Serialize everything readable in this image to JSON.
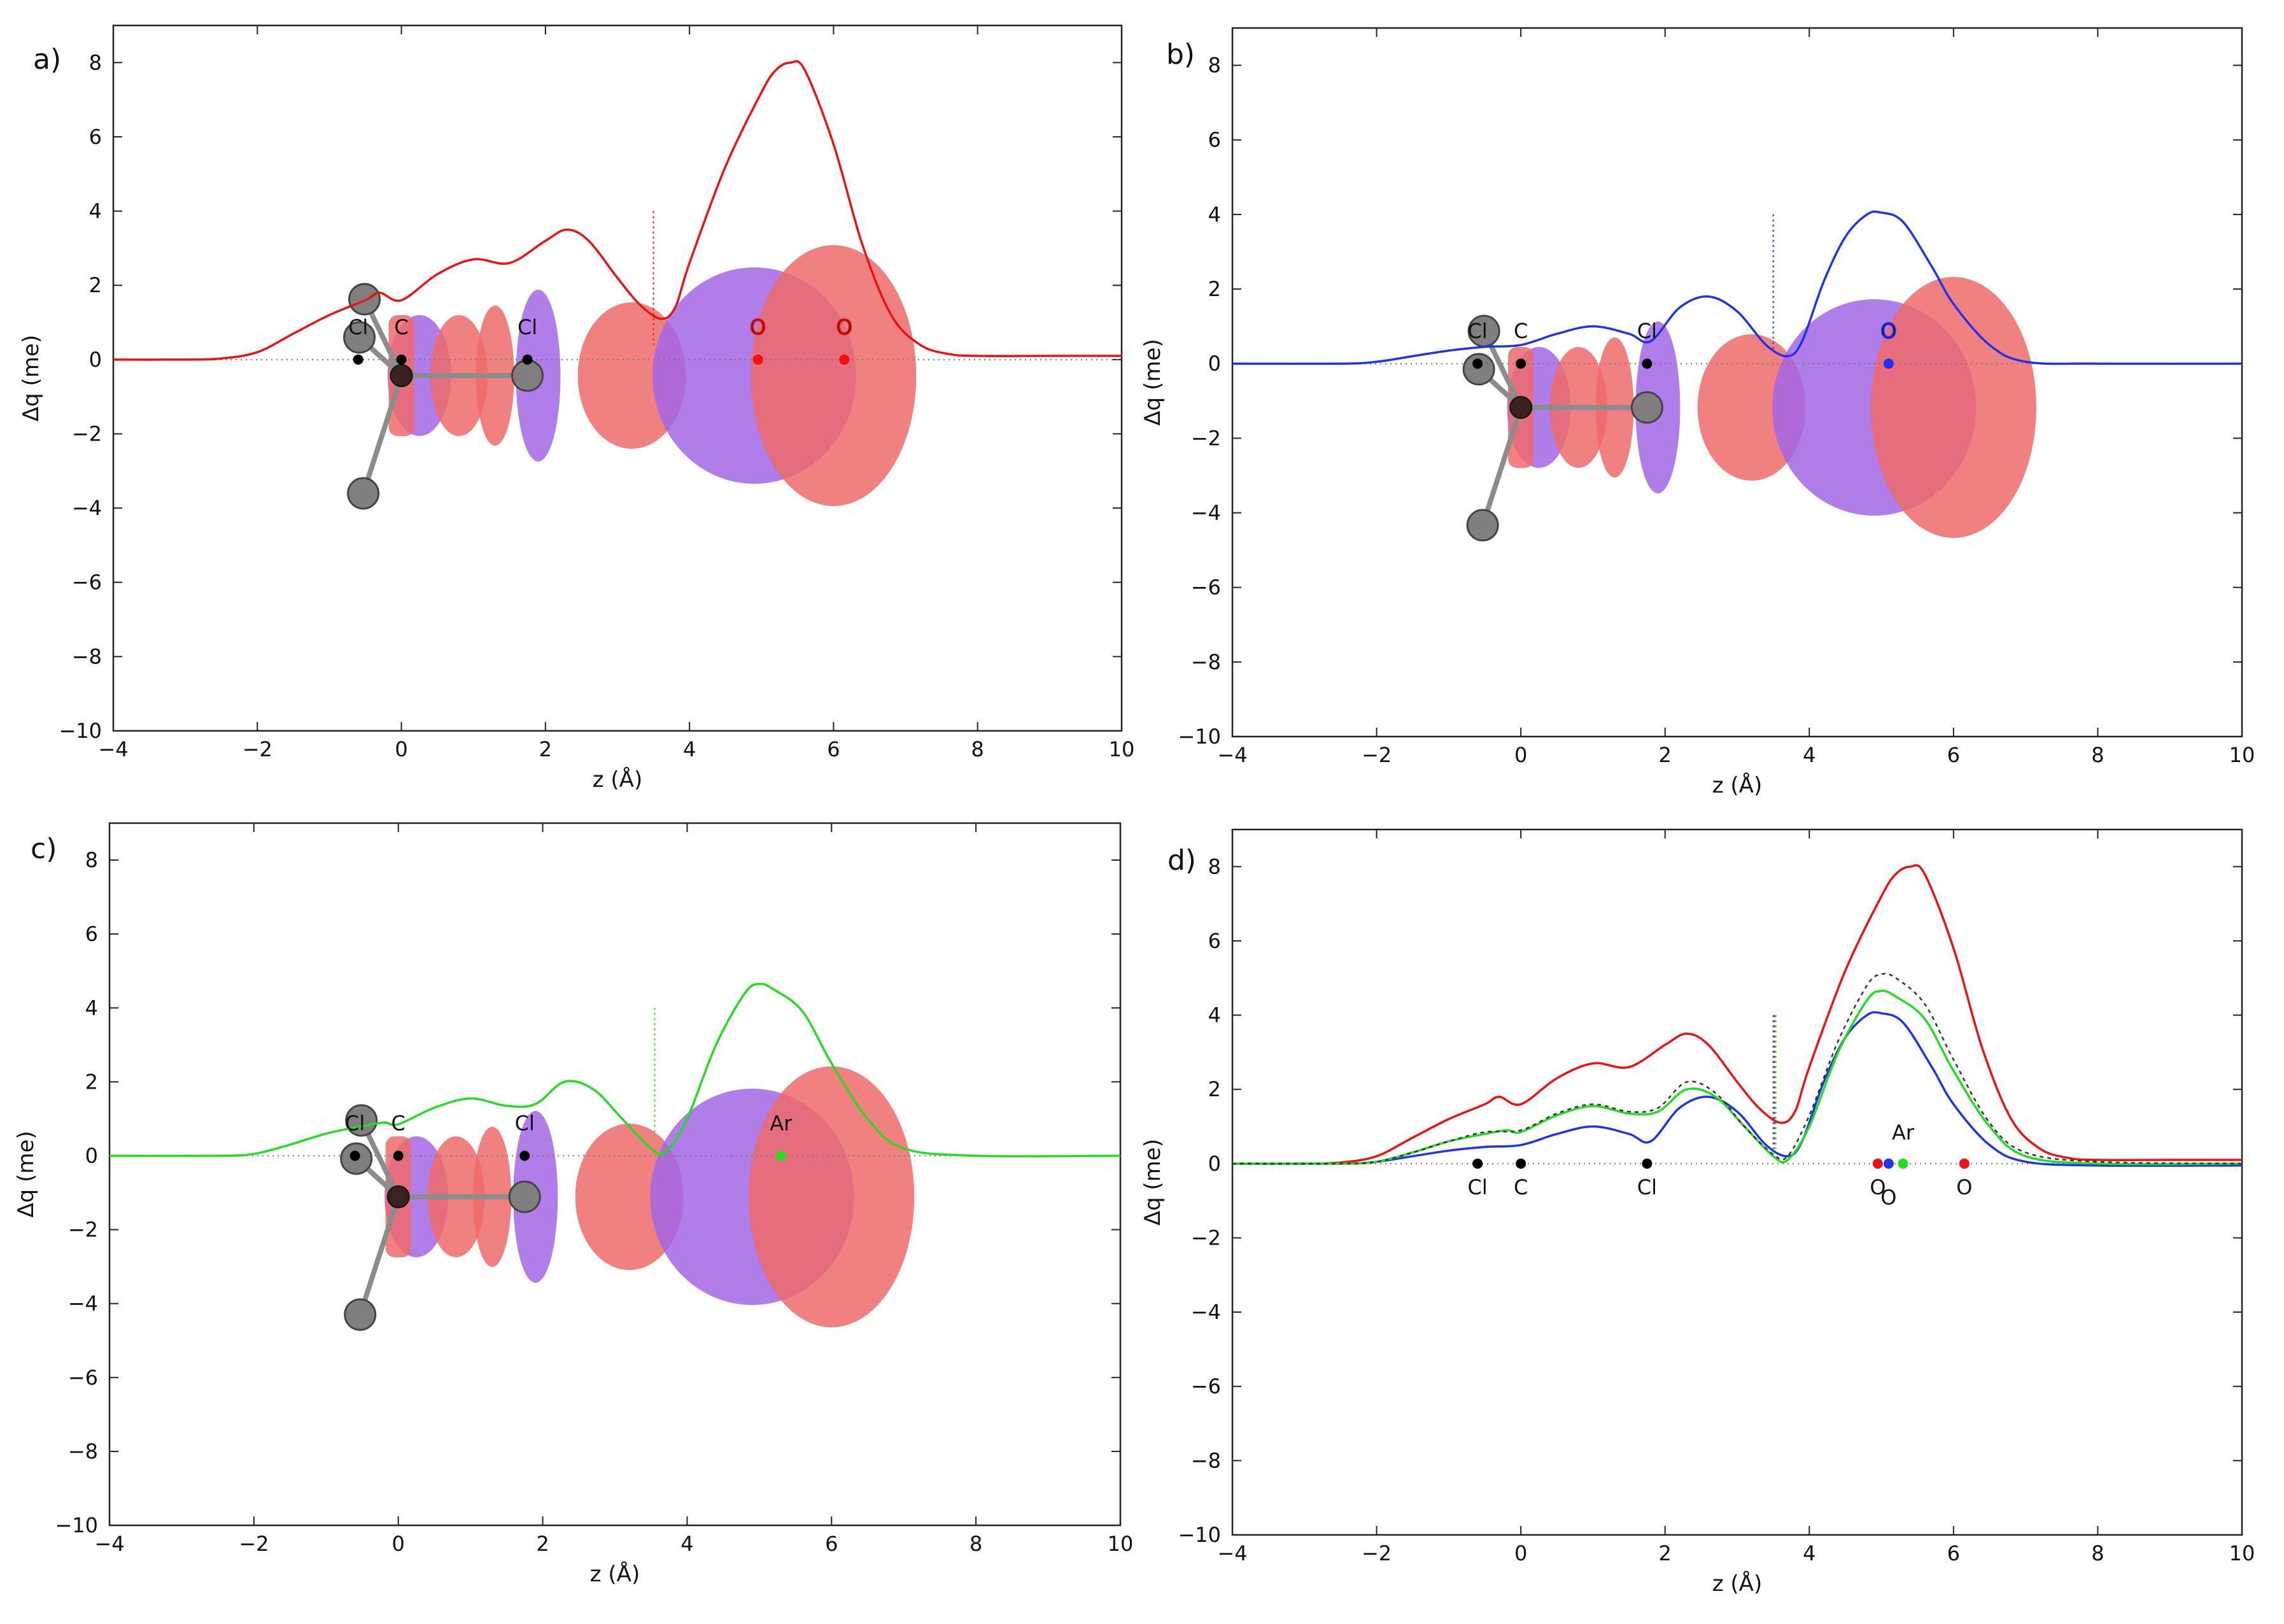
{
  "chart_data": [
    {
      "type": "line",
      "panel_label": "a)",
      "xlabel": "z (Å)",
      "ylabel": "Δq (me)",
      "xlim": [
        -4,
        10
      ],
      "ylim": [
        -10,
        9
      ],
      "xticks": [
        -4,
        -2,
        0,
        2,
        4,
        6,
        8,
        10
      ],
      "xtick_labels": [
        "−4",
        "−2",
        "0",
        "2",
        "4",
        "6",
        "8",
        "10"
      ],
      "yticks": [
        -10,
        -8,
        -6,
        -4,
        -2,
        0,
        2,
        4,
        6,
        8
      ],
      "ytick_labels": [
        "−10",
        "−8",
        "−6",
        "−4",
        "−2",
        "0",
        "2",
        "4",
        "6",
        "8"
      ],
      "grid": false,
      "zero_line": true,
      "vline_x": 3.5,
      "series": [
        {
          "color": "#ee1111",
          "dashed": false,
          "x": [
            -4,
            -3,
            -2.5,
            -2,
            -1.5,
            -1,
            -0.5,
            -0.3,
            0,
            0.5,
            1,
            1.5,
            2,
            2.3,
            2.6,
            3,
            3.3,
            3.6,
            3.8,
            4,
            4.5,
            5,
            5.2,
            5.4,
            5.6,
            6,
            6.4,
            6.8,
            7.2,
            7.6,
            8,
            9,
            10
          ],
          "y": [
            0,
            0,
            0.03,
            0.2,
            0.7,
            1.2,
            1.6,
            1.8,
            1.6,
            2.3,
            2.7,
            2.6,
            3.2,
            3.5,
            3.2,
            2.2,
            1.5,
            1.1,
            1.4,
            2.6,
            5.2,
            7.2,
            7.8,
            8.0,
            7.8,
            5.8,
            3.1,
            1.2,
            0.4,
            0.15,
            0.1,
            0.1,
            0.1
          ]
        }
      ],
      "atoms": [
        {
          "label": "Cl",
          "x": -0.6,
          "color": "#000000"
        },
        {
          "label": "C",
          "x": 0.0,
          "color": "#000000"
        },
        {
          "label": "Cl",
          "x": 1.75,
          "color": "#000000"
        },
        {
          "label": "O",
          "x": 4.95,
          "color": "#ee1111"
        },
        {
          "label": "O",
          "x": 6.15,
          "color": "#ee1111"
        }
      ],
      "atom_label_position": "above",
      "density_isosurface": {
        "positive_color": "#ef6a6a",
        "negative_color": "#a366e6"
      }
    },
    {
      "type": "line",
      "panel_label": "b)",
      "xlabel": "z (Å)",
      "ylabel": "Δq (me)",
      "xlim": [
        -4,
        10
      ],
      "ylim": [
        -10,
        9
      ],
      "xticks": [
        -4,
        -2,
        0,
        2,
        4,
        6,
        8,
        10
      ],
      "xtick_labels": [
        "−4",
        "−2",
        "0",
        "2",
        "4",
        "6",
        "8",
        "10"
      ],
      "yticks": [
        -10,
        -8,
        -6,
        -4,
        -2,
        0,
        2,
        4,
        6,
        8
      ],
      "ytick_labels": [
        "−10",
        "−8",
        "−6",
        "−4",
        "−2",
        "0",
        "2",
        "4",
        "6",
        "8"
      ],
      "grid": false,
      "zero_line": true,
      "vline_x": 3.5,
      "series": [
        {
          "color": "#1f33ee",
          "dashed": false,
          "x": [
            -4,
            -2.5,
            -2,
            -1.5,
            -1,
            -0.5,
            0,
            0.5,
            1,
            1.5,
            1.8,
            2.2,
            2.6,
            3,
            3.4,
            3.7,
            3.9,
            4.2,
            4.5,
            4.8,
            5,
            5.3,
            5.7,
            6,
            6.5,
            7,
            8,
            10
          ],
          "y": [
            0,
            0,
            0.05,
            0.2,
            0.35,
            0.45,
            0.5,
            0.8,
            1.0,
            0.8,
            0.6,
            1.5,
            1.8,
            1.4,
            0.5,
            0.2,
            0.6,
            2.2,
            3.4,
            4.0,
            4.05,
            3.8,
            2.6,
            1.6,
            0.5,
            0.05,
            0,
            0
          ]
        }
      ],
      "atoms": [
        {
          "label": "Cl",
          "x": -0.6,
          "color": "#000000"
        },
        {
          "label": "C",
          "x": 0.0,
          "color": "#000000"
        },
        {
          "label": "Cl",
          "x": 1.75,
          "color": "#000000"
        },
        {
          "label": "O",
          "x": 5.1,
          "color": "#1f33ee"
        }
      ],
      "atom_label_position": "above",
      "density_isosurface": {
        "positive_color": "#ef6a6a",
        "negative_color": "#a366e6"
      }
    },
    {
      "type": "line",
      "panel_label": "c)",
      "xlabel": "z (Å)",
      "ylabel": "Δq (me)",
      "xlim": [
        -4,
        10
      ],
      "ylim": [
        -10,
        9
      ],
      "xticks": [
        -4,
        -2,
        0,
        2,
        4,
        6,
        8,
        10
      ],
      "xtick_labels": [
        "−4",
        "−2",
        "0",
        "2",
        "4",
        "6",
        "8",
        "10"
      ],
      "yticks": [
        -10,
        -8,
        -6,
        -4,
        -2,
        0,
        2,
        4,
        6,
        8
      ],
      "ytick_labels": [
        "−10",
        "−8",
        "−6",
        "−4",
        "−2",
        "0",
        "2",
        "4",
        "6",
        "8"
      ],
      "grid": false,
      "zero_line": true,
      "vline_x": 3.55,
      "series": [
        {
          "color": "#22dd22",
          "dashed": false,
          "x": [
            -4,
            -2.5,
            -2,
            -1.5,
            -1,
            -0.5,
            -0.2,
            0,
            0.5,
            1,
            1.5,
            1.9,
            2.3,
            2.7,
            3.1,
            3.5,
            3.7,
            4,
            4.4,
            4.8,
            5.0,
            5.2,
            5.6,
            6,
            6.5,
            7,
            8,
            10
          ],
          "y": [
            0,
            0,
            0.05,
            0.3,
            0.6,
            0.8,
            0.9,
            0.85,
            1.3,
            1.55,
            1.35,
            1.4,
            2.0,
            1.8,
            1.0,
            0.2,
            0.1,
            1.0,
            3.0,
            4.4,
            4.65,
            4.5,
            3.9,
            2.5,
            1.0,
            0.2,
            0,
            0
          ]
        }
      ],
      "atoms": [
        {
          "label": "Cl",
          "x": -0.6,
          "color": "#000000"
        },
        {
          "label": "C",
          "x": 0.0,
          "color": "#000000"
        },
        {
          "label": "Cl",
          "x": 1.75,
          "color": "#000000"
        },
        {
          "label": "Ar",
          "x": 5.3,
          "color": "#22dd22"
        }
      ],
      "atom_label_position": "above",
      "density_isosurface": {
        "positive_color": "#ef6a6a",
        "negative_color": "#a366e6"
      }
    },
    {
      "type": "line",
      "panel_label": "d)",
      "xlabel": "z (Å)",
      "ylabel": "Δq (me)",
      "xlim": [
        -4,
        10
      ],
      "ylim": [
        -10,
        9
      ],
      "xticks": [
        -4,
        -2,
        0,
        2,
        4,
        6,
        8,
        10
      ],
      "xtick_labels": [
        "−4",
        "−2",
        "0",
        "2",
        "4",
        "6",
        "8",
        "10"
      ],
      "yticks": [
        -10,
        -8,
        -6,
        -4,
        -2,
        0,
        2,
        4,
        6,
        8
      ],
      "ytick_labels": [
        "−10",
        "−8",
        "−6",
        "−4",
        "−2",
        "0",
        "2",
        "4",
        "6",
        "8"
      ],
      "grid": false,
      "zero_line": true,
      "vline_x": 3.5,
      "series": [
        {
          "color": "#ee1111",
          "dashed": false,
          "x": [
            -4,
            -3,
            -2.5,
            -2,
            -1.5,
            -1,
            -0.5,
            -0.3,
            0,
            0.5,
            1,
            1.5,
            2,
            2.3,
            2.6,
            3,
            3.3,
            3.6,
            3.8,
            4,
            4.5,
            5,
            5.2,
            5.4,
            5.6,
            6,
            6.4,
            6.8,
            7.2,
            7.6,
            8,
            9,
            10
          ],
          "y": [
            0,
            0,
            0.03,
            0.2,
            0.7,
            1.2,
            1.6,
            1.8,
            1.6,
            2.3,
            2.7,
            2.6,
            3.2,
            3.5,
            3.2,
            2.2,
            1.5,
            1.1,
            1.4,
            2.6,
            5.2,
            7.2,
            7.8,
            8.0,
            7.8,
            5.8,
            3.1,
            1.2,
            0.4,
            0.15,
            0.1,
            0.1,
            0.1
          ]
        },
        {
          "color": "#1f33ee",
          "dashed": false,
          "x": [
            -4,
            -2.5,
            -2,
            -1.5,
            -1,
            -0.5,
            0,
            0.5,
            1,
            1.5,
            1.8,
            2.2,
            2.6,
            3,
            3.4,
            3.7,
            3.9,
            4.2,
            4.5,
            4.8,
            5,
            5.3,
            5.7,
            6,
            6.5,
            7,
            8,
            10
          ],
          "y": [
            0,
            0,
            0.05,
            0.2,
            0.35,
            0.45,
            0.5,
            0.8,
            1.0,
            0.8,
            0.6,
            1.5,
            1.8,
            1.4,
            0.5,
            0.2,
            0.6,
            2.2,
            3.4,
            4.0,
            4.05,
            3.8,
            2.6,
            1.6,
            0.5,
            0.05,
            -0.05,
            -0.05
          ]
        },
        {
          "color": "#22dd22",
          "dashed": false,
          "x": [
            -4,
            -2.5,
            -2,
            -1.5,
            -1,
            -0.5,
            -0.2,
            0,
            0.5,
            1,
            1.5,
            1.9,
            2.3,
            2.7,
            3.1,
            3.5,
            3.7,
            4,
            4.4,
            4.8,
            5.0,
            5.2,
            5.6,
            6,
            6.5,
            7,
            8,
            10
          ],
          "y": [
            0,
            0,
            0.05,
            0.3,
            0.6,
            0.8,
            0.9,
            0.85,
            1.3,
            1.55,
            1.35,
            1.4,
            2.0,
            1.8,
            1.0,
            0.2,
            0.1,
            1.0,
            3.0,
            4.4,
            4.65,
            4.5,
            3.9,
            2.5,
            1.0,
            0.2,
            0,
            0
          ]
        },
        {
          "color": "#333333",
          "dashed": true,
          "x": [
            -4,
            -2.5,
            -2,
            -1.5,
            -1,
            -0.5,
            0,
            0.5,
            1,
            1.5,
            1.9,
            2.3,
            2.7,
            3.1,
            3.5,
            3.7,
            4,
            4.4,
            4.8,
            5.0,
            5.2,
            5.6,
            6,
            6.5,
            7,
            8,
            10
          ],
          "y": [
            0,
            0,
            0.05,
            0.3,
            0.6,
            0.85,
            0.9,
            1.35,
            1.6,
            1.4,
            1.5,
            2.2,
            1.9,
            1.0,
            0.25,
            0.2,
            1.3,
            3.3,
            4.8,
            5.1,
            5.0,
            4.3,
            2.8,
            1.1,
            0.3,
            0.05,
            0
          ]
        }
      ],
      "atoms": [
        {
          "label": "Cl",
          "x": -0.6,
          "color": "#000000"
        },
        {
          "label": "C",
          "x": 0.0,
          "color": "#000000"
        },
        {
          "label": "Cl",
          "x": 1.75,
          "color": "#000000"
        },
        {
          "label": "O",
          "x": 4.95,
          "color": "#ee1111"
        },
        {
          "label": "O",
          "x": 5.1,
          "color": "#1f33ee"
        },
        {
          "label": "Ar",
          "x": 5.3,
          "color": "#22dd22"
        },
        {
          "label": "O",
          "x": 6.15,
          "color": "#ee1111"
        }
      ],
      "atom_label_position": "below",
      "density_isosurface": null
    }
  ]
}
